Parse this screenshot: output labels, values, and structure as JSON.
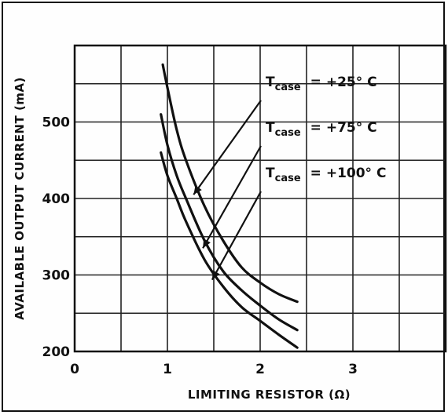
{
  "chart_data": {
    "type": "line",
    "title": "",
    "xlabel": "LIMITING RESISTOR (Ω)",
    "ylabel": "AVAILABLE OUTPUT CURRENT (mA)",
    "xlim": [
      0,
      4
    ],
    "ylim": [
      200,
      600
    ],
    "x_ticks": [
      "0",
      "1",
      "2",
      "3"
    ],
    "y_ticks": [
      "200",
      "300",
      "400",
      "500"
    ],
    "grid": true,
    "legend_placement": "top-right",
    "series": [
      {
        "name": "Tcase = +25° C",
        "label_main": "T",
        "label_sub": "case",
        "label_value": "=  +25° C",
        "x": [
          0.95,
          1.0,
          1.1,
          1.2,
          1.4,
          1.6,
          1.8,
          2.0,
          2.2,
          2.4
        ],
        "y": [
          575,
          545,
          490,
          450,
          390,
          345,
          310,
          290,
          275,
          265
        ]
      },
      {
        "name": "Tcase = +75° C",
        "label_main": "T",
        "label_sub": "case",
        "label_value": "=  +75° C",
        "x": [
          0.93,
          1.0,
          1.1,
          1.2,
          1.4,
          1.6,
          1.8,
          2.0,
          2.2,
          2.4
        ],
        "y": [
          510,
          470,
          430,
          400,
          345,
          305,
          280,
          260,
          242,
          228
        ]
      },
      {
        "name": "Tcase = +100° C",
        "label_main": "T",
        "label_sub": "case",
        "label_value": "=  +100° C",
        "x": [
          0.93,
          1.0,
          1.1,
          1.2,
          1.4,
          1.6,
          1.8,
          2.0,
          2.2,
          2.4
        ],
        "y": [
          460,
          430,
          400,
          370,
          320,
          285,
          258,
          240,
          222,
          205
        ]
      }
    ]
  }
}
